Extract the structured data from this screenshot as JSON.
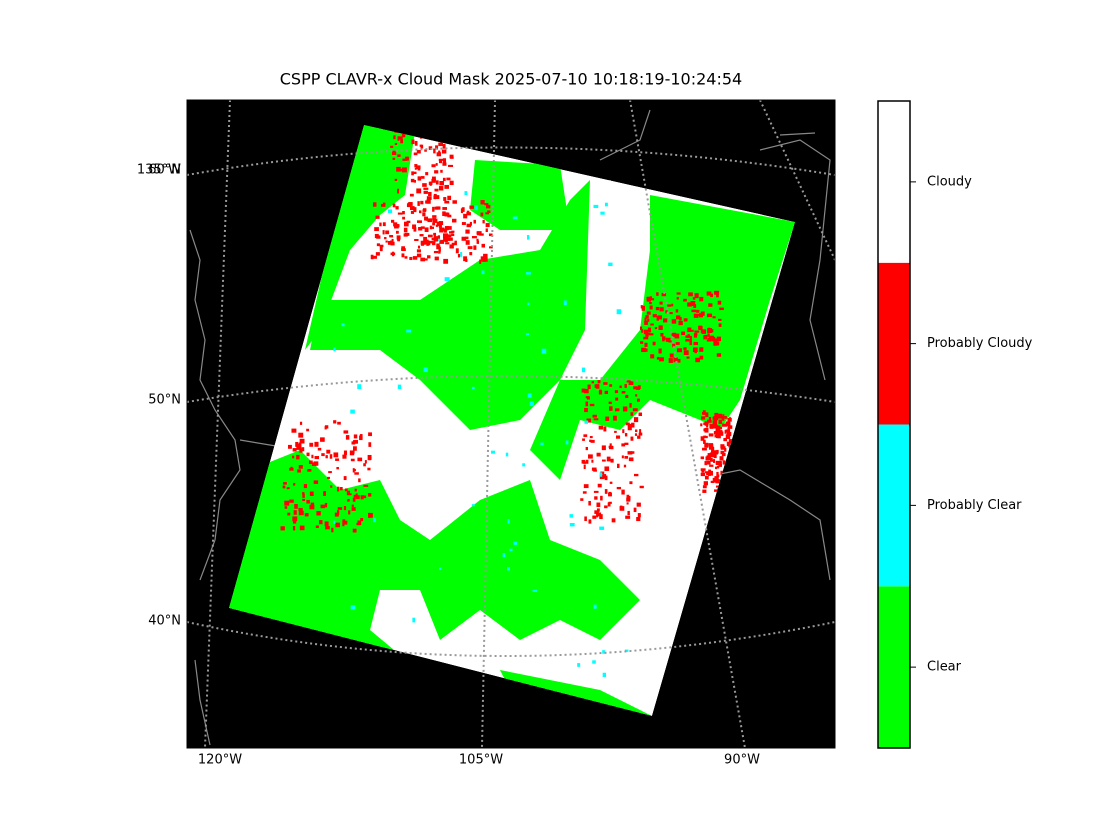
{
  "title": "CSPP CLAVR-x Cloud Mask 2025-07-10 10:18:19-10:24:54",
  "map": {
    "lon_labels": [
      "120°W",
      "105°W",
      "90°W"
    ],
    "lat_labels": [
      "60°N",
      "50°N",
      "40°N"
    ],
    "extra_label": "135°W"
  },
  "colorbar": {
    "classes": [
      {
        "label": "Clear",
        "color": "#00ff00"
      },
      {
        "label": "Probably Clear",
        "color": "#00ffff"
      },
      {
        "label": "Probably Cloudy",
        "color": "#ff0000"
      },
      {
        "label": "Cloudy",
        "color": "#ffffff"
      }
    ]
  }
}
